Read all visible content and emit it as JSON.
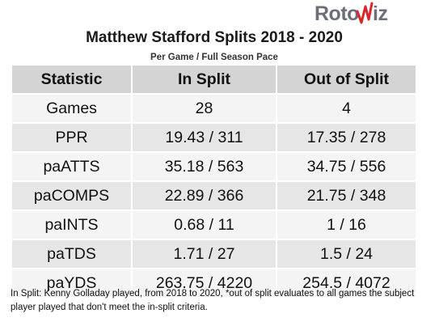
{
  "logo": {
    "part1": "Roto",
    "part2": "iz",
    "brand_gray": "#6b6f78",
    "brand_red": "#d9262b"
  },
  "title": "Matthew Stafford Splits 2018 - 2020",
  "subtitle": "Per Game / Full Season Pace",
  "table": {
    "headers": [
      "Statistic",
      "In Split",
      "Out of Split"
    ],
    "rows": [
      [
        "Games",
        "28",
        "4"
      ],
      [
        "PPR",
        "19.43 / 311",
        "17.35 / 278"
      ],
      [
        "paATTS",
        "35.18 / 563",
        "34.75 / 556"
      ],
      [
        "paCOMPS",
        "22.89 / 366",
        "21.75 / 348"
      ],
      [
        "paINTS",
        "0.68 / 11",
        "1 / 16"
      ],
      [
        "paTDS",
        "1.71 / 27",
        "1.5 / 24"
      ],
      [
        "paYDS",
        "263.75 / 4220",
        "254.5 / 4072"
      ]
    ]
  },
  "footnote": "In Split: Kenny Golladay played, from 2018 to 2020,  *out of split evaluates to all games the subject player played that don't meet the in-split criteria."
}
